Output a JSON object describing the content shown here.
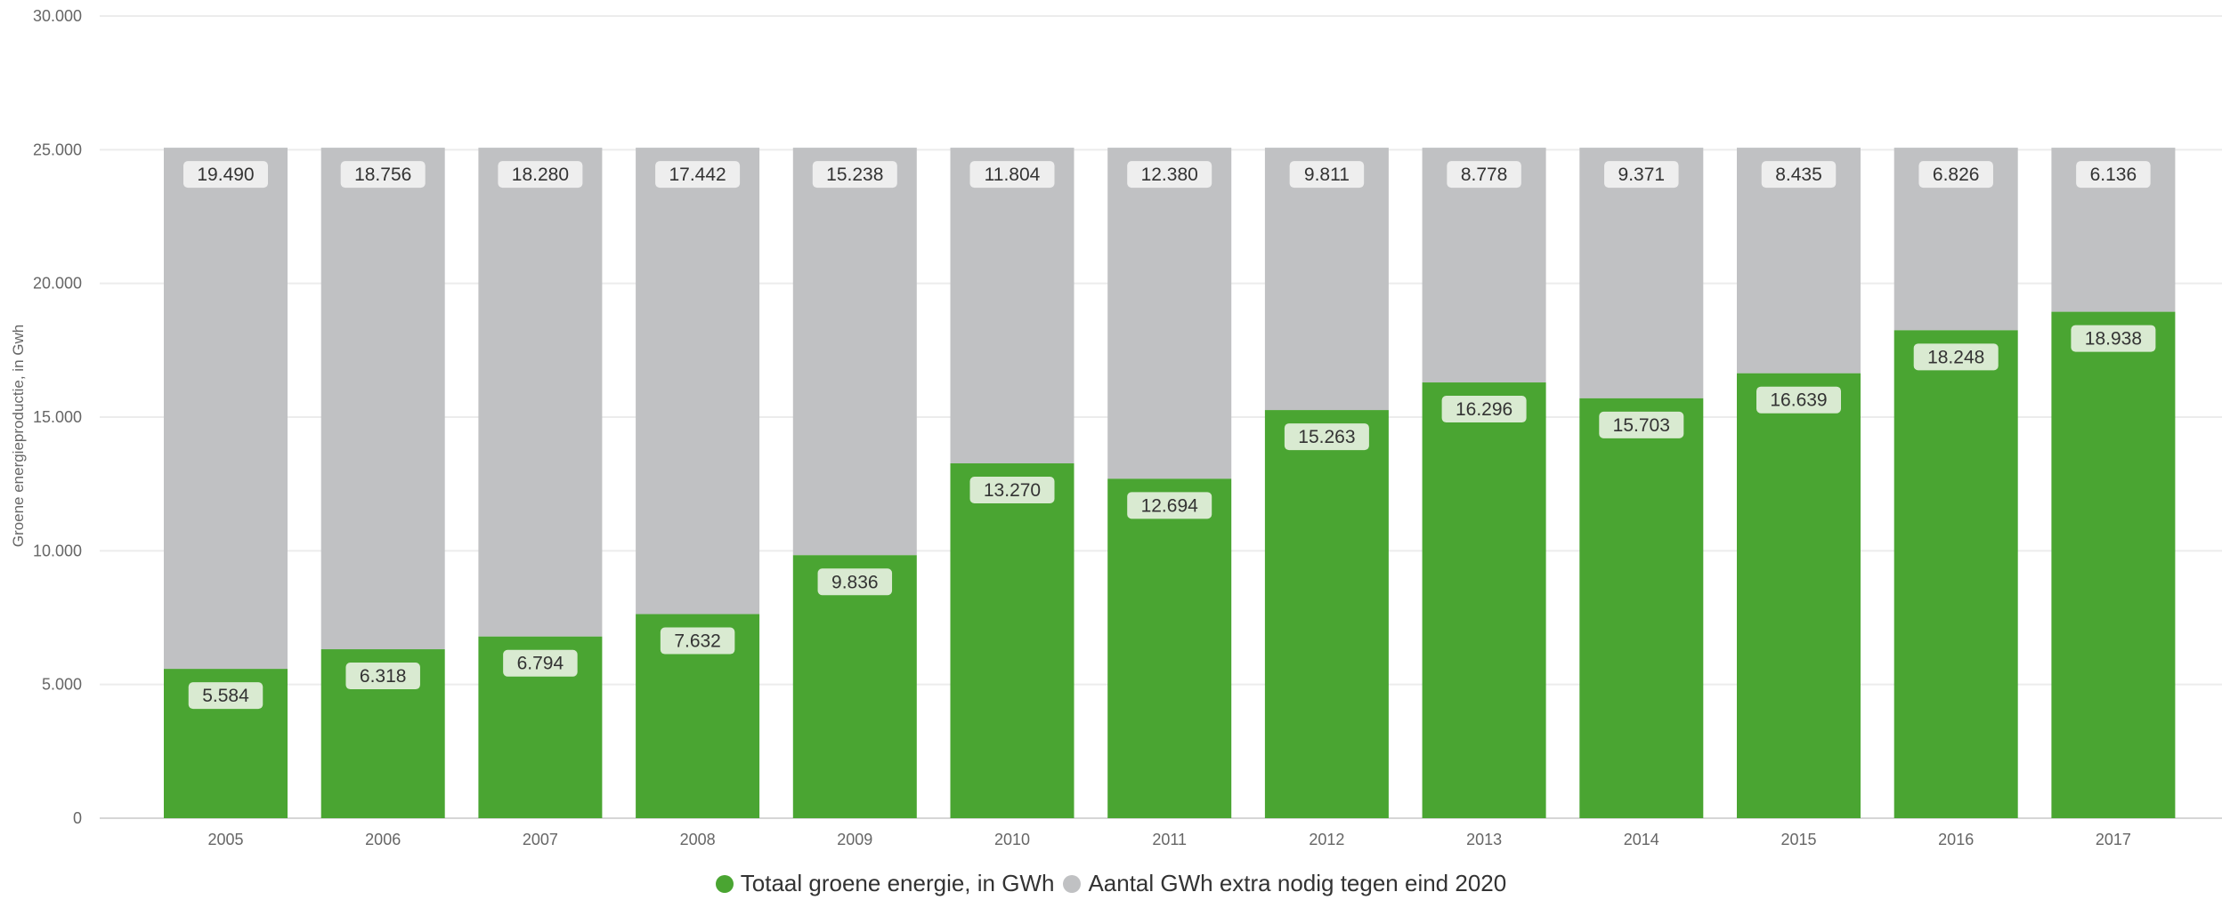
{
  "chart_data": {
    "type": "bar",
    "stacked": true,
    "categories": [
      "2005",
      "2006",
      "2007",
      "2008",
      "2009",
      "2010",
      "2011",
      "2012",
      "2013",
      "2014",
      "2015",
      "2016",
      "2017"
    ],
    "series": [
      {
        "name": "Totaal groene energie, in GWh",
        "color": "#4aa532",
        "values": [
          5584,
          6318,
          6794,
          7632,
          9836,
          13270,
          12694,
          15263,
          16296,
          15703,
          16639,
          18248,
          18938
        ]
      },
      {
        "name": "Aantal GWh extra nodig tegen eind 2020",
        "color": "#c0c1c3",
        "values": [
          19490,
          18756,
          18280,
          17442,
          15238,
          11804,
          12380,
          9811,
          8778,
          9371,
          8435,
          6826,
          6136
        ]
      }
    ],
    "data_labels": {
      "series_0": [
        "5.584",
        "6.318",
        "6.794",
        "7.632",
        "9.836",
        "13.270",
        "12.694",
        "15.263",
        "16.296",
        "15.703",
        "16.639",
        "18.248",
        "18.938"
      ],
      "series_1": [
        "19.490",
        "18.756",
        "18.280",
        "17.442",
        "15.238",
        "11.804",
        "12.380",
        "9.811",
        "8.778",
        "9.371",
        "8.435",
        "6.826",
        "6.136"
      ]
    },
    "y_ticks": [
      0,
      5000,
      10000,
      15000,
      20000,
      25000,
      30000
    ],
    "y_tick_labels": [
      "0",
      "5.000",
      "10.000",
      "15.000",
      "20.000",
      "25.000",
      "30.000"
    ],
    "ylim": [
      0,
      30000
    ],
    "ylabel": "Groene energieproductie, in Gwh",
    "xlabel": "",
    "grid": true,
    "legend_position": "bottom"
  },
  "legend": {
    "items": [
      {
        "label": "Totaal groene energie, in GWh",
        "color": "#4aa532"
      },
      {
        "label": "Aantal GWh extra nodig tegen eind 2020",
        "color": "#c0c1c3"
      }
    ]
  }
}
